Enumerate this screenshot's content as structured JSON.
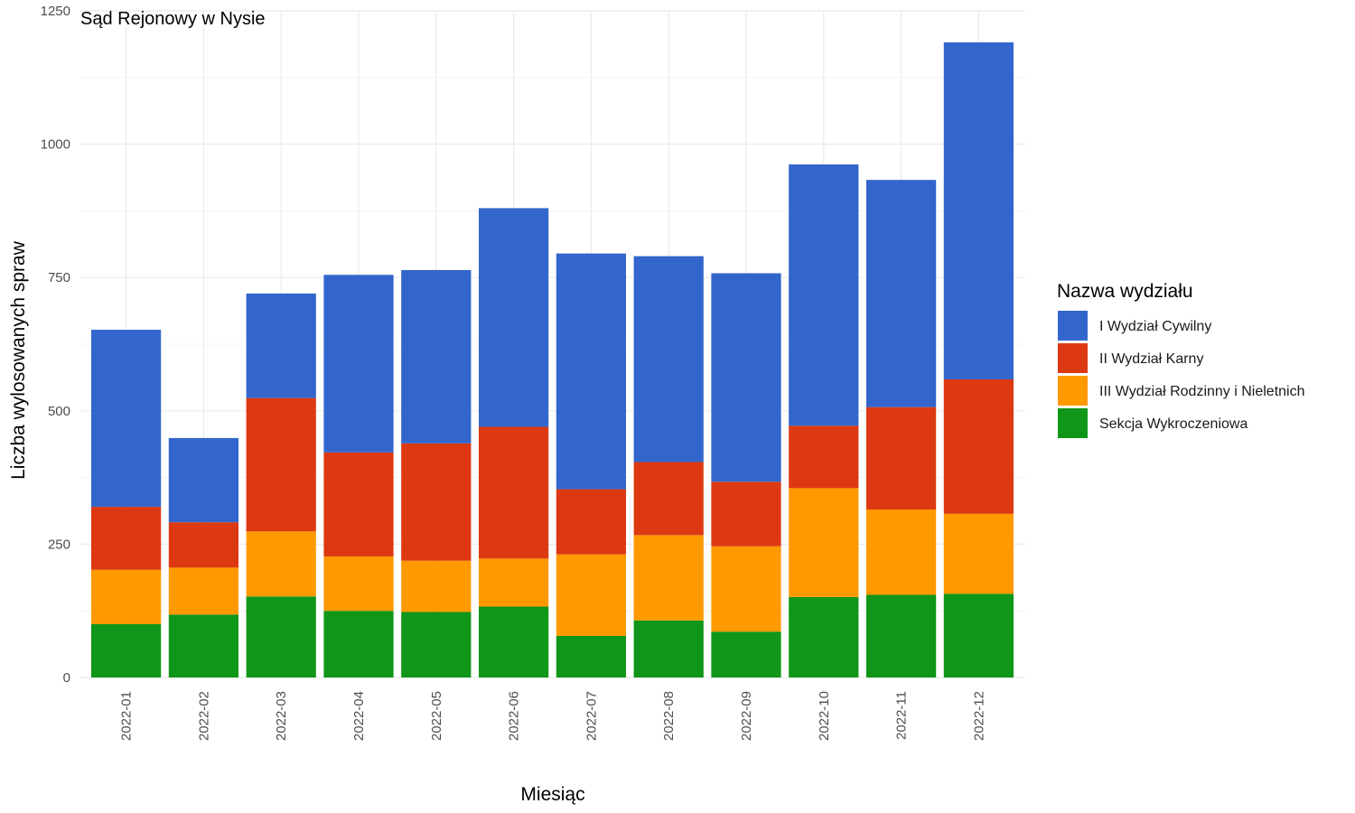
{
  "chart_data": {
    "type": "bar",
    "stacked": true,
    "title": "Sąd Rejonowy w Nysie",
    "xlabel": "Miesiąc",
    "ylabel": "Liczba wylosowanych spraw",
    "ylim": [
      0,
      1250
    ],
    "yticks": [
      0,
      250,
      500,
      750,
      1000,
      1250
    ],
    "grid": true,
    "legend_title": "Nazwa wydziału",
    "legend_position": "right",
    "categories": [
      "2022-01",
      "2022-02",
      "2022-03",
      "2022-04",
      "2022-05",
      "2022-06",
      "2022-07",
      "2022-08",
      "2022-09",
      "2022-10",
      "2022-11",
      "2022-12"
    ],
    "series": [
      {
        "name": "I Wydział Cywilny",
        "color": "#3366cc",
        "values": [
          332,
          158,
          196,
          333,
          325,
          410,
          442,
          386,
          391,
          490,
          426,
          632
        ]
      },
      {
        "name": "II Wydział Karny",
        "color": "#dc3912",
        "values": [
          118,
          85,
          250,
          195,
          220,
          247,
          122,
          137,
          121,
          117,
          192,
          252
        ]
      },
      {
        "name": "III Wydział Rodzinny i Nieletnich",
        "color": "#ff9900",
        "values": [
          102,
          88,
          122,
          102,
          96,
          90,
          153,
          160,
          160,
          204,
          160,
          150
        ]
      },
      {
        "name": "Sekcja Wykroczeniowa",
        "color": "#109618",
        "values": [
          100,
          118,
          152,
          125,
          123,
          133,
          78,
          107,
          86,
          151,
          155,
          157
        ]
      }
    ]
  }
}
